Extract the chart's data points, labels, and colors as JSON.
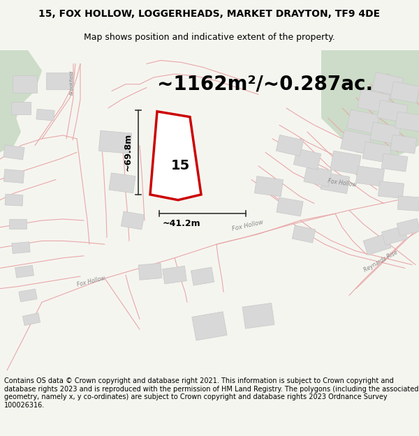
{
  "title_line1": "15, FOX HOLLOW, LOGGERHEADS, MARKET DRAYTON, TF9 4DE",
  "title_line2": "Map shows position and indicative extent of the property.",
  "area_text": "~1162m²/~0.287ac.",
  "label_15": "15",
  "dim_width": "~41.2m",
  "dim_height": "~69.8m",
  "copyright_text": "Contains OS data © Crown copyright and database right 2021. This information is subject to Crown copyright and database rights 2023 and is reproduced with the permission of HM Land Registry. The polygons (including the associated geometry, namely x, y co-ordinates) are subject to Crown copyright and database rights 2023 Ordnance Survey 100026316.",
  "bg_color": "#f5f5f0",
  "map_bg": "#ffffff",
  "road_color": "#e8a8a8",
  "building_color": "#d8d8d8",
  "building_edge": "#c8c8c8",
  "green_color": "#ccdcc8",
  "highlight_color": "#cc0000",
  "highlight_fill": "#ffffff",
  "dim_color": "#333333",
  "title_fontsize": 10,
  "subtitle_fontsize": 9,
  "area_fontsize": 20,
  "number_fontsize": 14,
  "road_label_fontsize": 6.0,
  "copyright_fontsize": 7.0
}
